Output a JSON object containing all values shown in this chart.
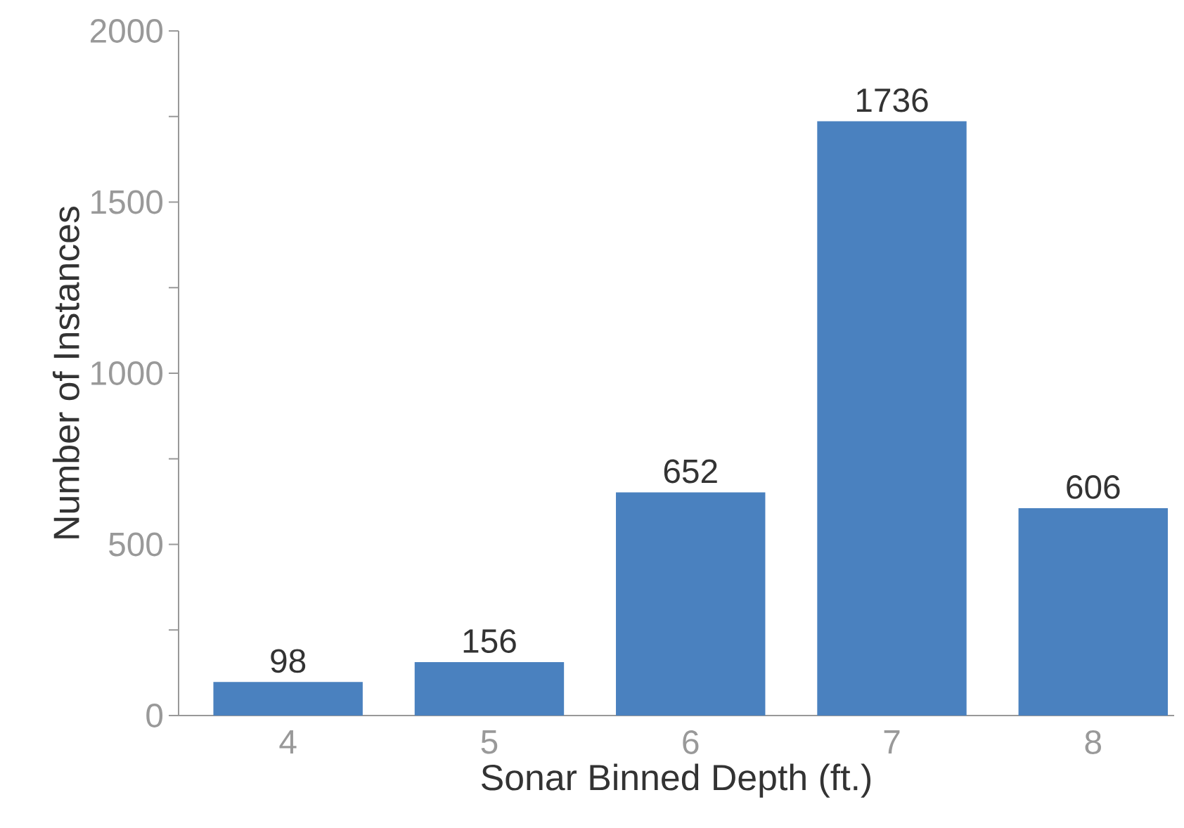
{
  "chart_data": {
    "type": "bar",
    "xlabel": "Sonar Binned Depth (ft.)",
    "ylabel": "Number of Instances",
    "categories": [
      "4",
      "5",
      "6",
      "7",
      "8"
    ],
    "values": [
      98,
      156,
      652,
      1736,
      606
    ],
    "value_labels": [
      "98",
      "156",
      "652",
      "1736",
      "606"
    ],
    "color": "#4a81bf",
    "ylim": [
      0,
      2000
    ],
    "yticks": [
      0,
      {
        "value": 250,
        "label": null
      },
      500,
      {
        "value": 750,
        "label": null
      },
      1000,
      {
        "value": 1250,
        "label": null
      },
      1500,
      {
        "value": 1750,
        "label": null
      },
      2000
    ],
    "grid": false
  }
}
